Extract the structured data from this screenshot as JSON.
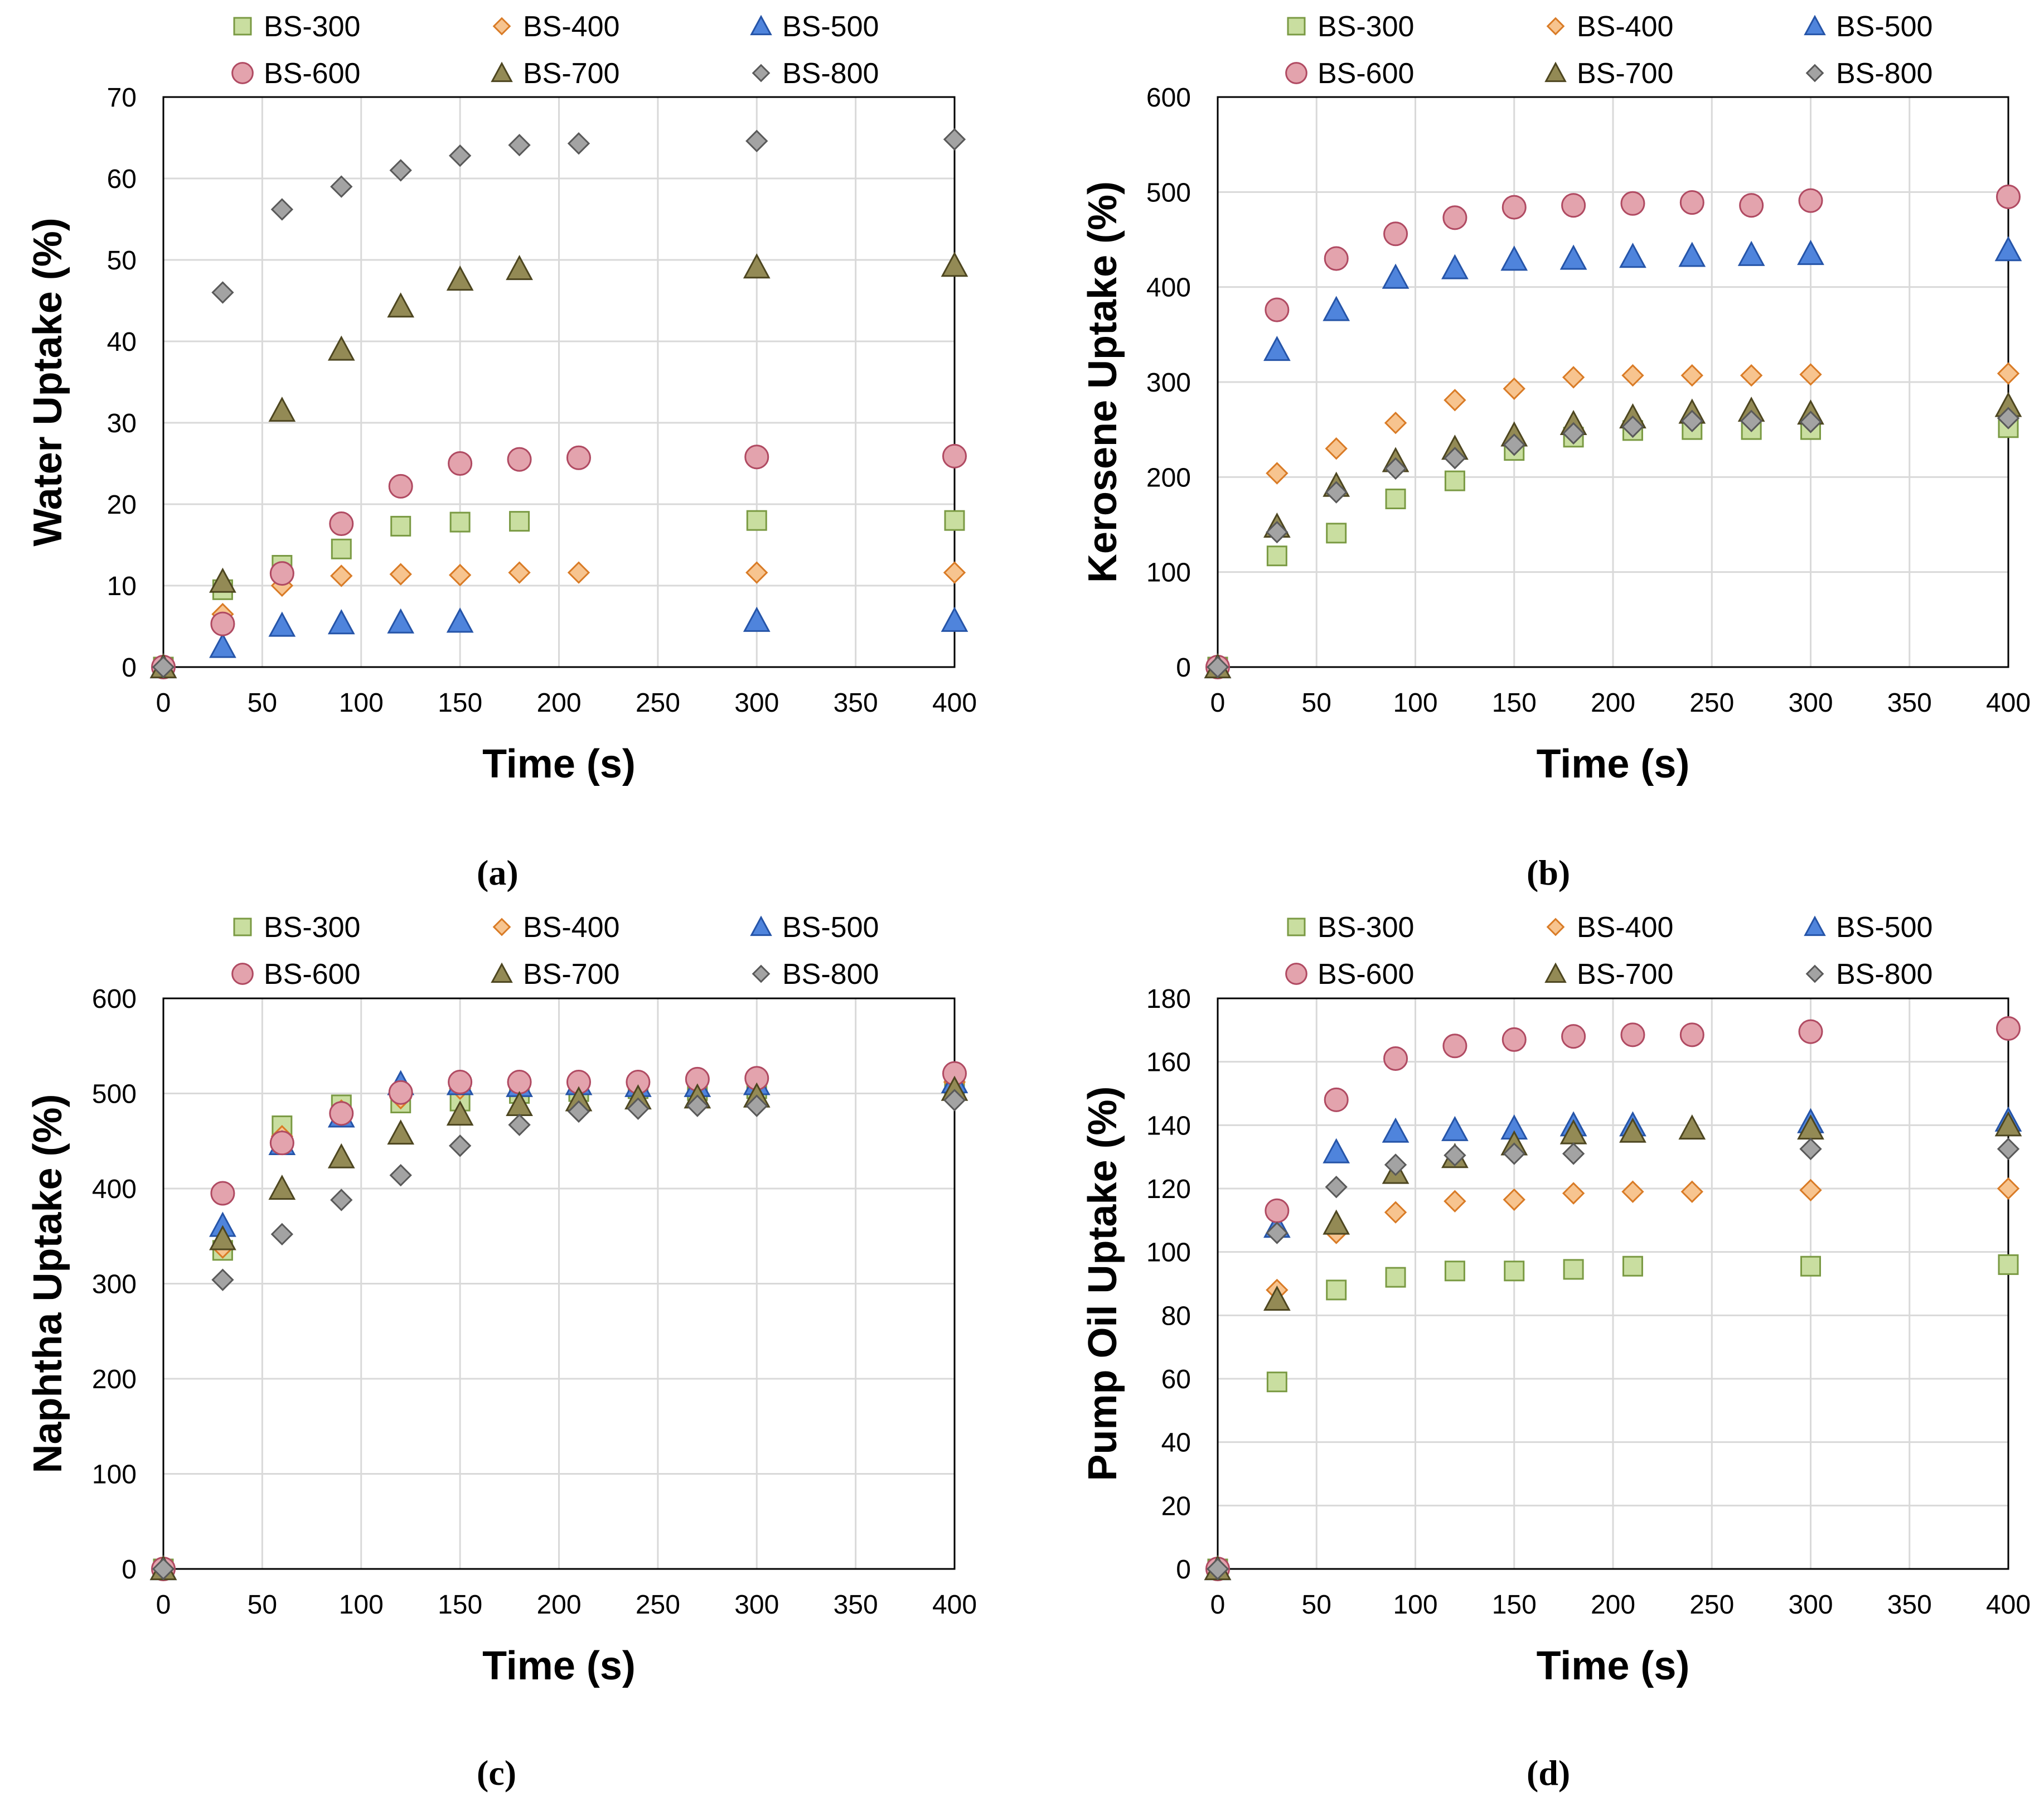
{
  "figure": {
    "panel_labels": [
      "(a)",
      "(b)",
      "(c)",
      "(d)"
    ],
    "styles": {
      "BS-300": {
        "shape": "square",
        "fill": "#c9deA0",
        "stroke": "#7a9a43"
      },
      "BS-400": {
        "shape": "diamond",
        "fill": "#f7c48f",
        "stroke": "#d97b26"
      },
      "BS-500": {
        "shape": "triangle",
        "fill": "#4f84dc",
        "stroke": "#2554a8"
      },
      "BS-600": {
        "shape": "circle",
        "fill": "#e3a3ad",
        "stroke": "#b04a62"
      },
      "BS-700": {
        "shape": "triangle",
        "fill": "#938a55",
        "stroke": "#4d4620"
      },
      "BS-800": {
        "shape": "diamond",
        "fill": "#a3a3a3",
        "stroke": "#595959"
      }
    },
    "colors": {
      "grid": "#d9d9d9",
      "axis": "#000000"
    }
  },
  "chart_data": [
    {
      "type": "scatter",
      "panel": "(a)",
      "xlabel": "Time (s)",
      "ylabel": "Water Uptake (%)",
      "xlim": [
        0,
        400
      ],
      "ylim": [
        0,
        70
      ],
      "xticks": [
        0,
        50,
        100,
        150,
        200,
        250,
        300,
        350,
        400
      ],
      "yticks": [
        0,
        10,
        20,
        30,
        40,
        50,
        60,
        70
      ],
      "series": [
        {
          "name": "BS-300",
          "x": [
            0,
            30,
            60,
            90,
            120,
            150,
            180,
            300,
            400
          ],
          "y": [
            0,
            9.5,
            12.5,
            14.5,
            17.3,
            17.8,
            17.9,
            18.0,
            18.0
          ]
        },
        {
          "name": "BS-400",
          "x": [
            0,
            30,
            60,
            90,
            120,
            150,
            180,
            210,
            300,
            400
          ],
          "y": [
            0,
            6.5,
            10.0,
            11.2,
            11.4,
            11.3,
            11.6,
            11.6,
            11.6,
            11.6
          ]
        },
        {
          "name": "BS-500",
          "x": [
            0,
            30,
            60,
            90,
            120,
            150,
            300,
            400
          ],
          "y": [
            0,
            2.5,
            5.1,
            5.4,
            5.5,
            5.6,
            5.7,
            5.7
          ]
        },
        {
          "name": "BS-600",
          "x": [
            0,
            30,
            60,
            90,
            120,
            150,
            180,
            210,
            300,
            400
          ],
          "y": [
            0,
            5.3,
            11.5,
            17.6,
            22.2,
            25.0,
            25.5,
            25.7,
            25.8,
            25.9
          ]
        },
        {
          "name": "BS-700",
          "x": [
            0,
            30,
            60,
            90,
            120,
            150,
            180,
            300,
            400
          ],
          "y": [
            0,
            10.5,
            31.5,
            39.0,
            44.3,
            47.6,
            48.9,
            49.1,
            49.3
          ]
        },
        {
          "name": "BS-800",
          "x": [
            0,
            30,
            60,
            90,
            120,
            150,
            180,
            210,
            300,
            400
          ],
          "y": [
            0,
            46.0,
            56.2,
            59.0,
            61.0,
            62.8,
            64.1,
            64.3,
            64.6,
            64.8
          ]
        }
      ]
    },
    {
      "type": "scatter",
      "panel": "(b)",
      "xlabel": "Time (s)",
      "ylabel": "Kerosene Uptake (%)",
      "xlim": [
        0,
        400
      ],
      "ylim": [
        0,
        600
      ],
      "xticks": [
        0,
        50,
        100,
        150,
        200,
        250,
        300,
        350,
        400
      ],
      "yticks": [
        0,
        100,
        200,
        300,
        400,
        500,
        600
      ],
      "series": [
        {
          "name": "BS-300",
          "x": [
            0,
            30,
            60,
            90,
            120,
            150,
            180,
            210,
            240,
            270,
            300,
            400
          ],
          "y": [
            0,
            117,
            141,
            177,
            196,
            228,
            242,
            249,
            250,
            250,
            250,
            252
          ]
        },
        {
          "name": "BS-400",
          "x": [
            0,
            30,
            60,
            90,
            120,
            150,
            180,
            210,
            240,
            270,
            300,
            400
          ],
          "y": [
            0,
            204,
            230,
            257,
            281,
            293,
            305,
            307,
            307,
            307,
            308,
            309
          ]
        },
        {
          "name": "BS-500",
          "x": [
            0,
            30,
            60,
            90,
            120,
            150,
            180,
            210,
            240,
            270,
            300,
            400
          ],
          "y": [
            0,
            334,
            376,
            410,
            420,
            429,
            430,
            432,
            433,
            434,
            435,
            439
          ]
        },
        {
          "name": "BS-600",
          "x": [
            0,
            30,
            60,
            90,
            120,
            150,
            180,
            210,
            240,
            270,
            300,
            400
          ],
          "y": [
            0,
            376,
            430,
            456,
            473,
            484,
            486,
            488,
            489,
            486,
            491,
            495
          ]
        },
        {
          "name": "BS-700",
          "x": [
            0,
            30,
            60,
            90,
            120,
            150,
            180,
            210,
            240,
            270,
            300,
            400
          ],
          "y": [
            0,
            148,
            191,
            217,
            230,
            244,
            256,
            263,
            268,
            270,
            267,
            275
          ]
        },
        {
          "name": "BS-800",
          "x": [
            0,
            30,
            60,
            90,
            120,
            150,
            180,
            210,
            240,
            270,
            300,
            400
          ],
          "y": [
            0,
            142,
            184,
            209,
            220,
            234,
            246,
            253,
            259,
            259,
            258,
            262
          ]
        }
      ]
    },
    {
      "type": "scatter",
      "panel": "(c)",
      "xlabel": "Time (s)",
      "ylabel": "Naphtha Uptake (%)",
      "xlim": [
        0,
        400
      ],
      "ylim": [
        0,
        600
      ],
      "xticks": [
        0,
        50,
        100,
        150,
        200,
        250,
        300,
        350,
        400
      ],
      "yticks": [
        0,
        100,
        200,
        300,
        400,
        500,
        600
      ],
      "series": [
        {
          "name": "BS-300",
          "x": [
            0,
            30,
            60,
            90,
            120,
            150,
            180,
            210,
            240,
            270,
            300,
            400
          ],
          "y": [
            0,
            335,
            466,
            488,
            490,
            492,
            500,
            502,
            505,
            503,
            505,
            508
          ]
        },
        {
          "name": "BS-400",
          "x": [
            0,
            30,
            60,
            90,
            120,
            150,
            180,
            210,
            240,
            270,
            300,
            400
          ],
          "y": [
            0,
            338,
            455,
            482,
            495,
            505,
            507,
            508,
            508,
            510,
            510,
            512
          ]
        },
        {
          "name": "BS-500",
          "x": [
            0,
            30,
            60,
            90,
            120,
            150,
            180,
            210,
            240,
            270,
            300,
            400
          ],
          "y": [
            0,
            361,
            447,
            476,
            510,
            510,
            508,
            510,
            508,
            508,
            510,
            512
          ]
        },
        {
          "name": "BS-600",
          "x": [
            0,
            30,
            60,
            90,
            120,
            150,
            180,
            210,
            240,
            270,
            300,
            400
          ],
          "y": [
            0,
            395,
            448,
            479,
            501,
            512,
            512,
            512,
            512,
            515,
            516,
            521
          ]
        },
        {
          "name": "BS-700",
          "x": [
            0,
            30,
            60,
            90,
            120,
            150,
            180,
            210,
            240,
            270,
            300,
            400
          ],
          "y": [
            0,
            347,
            400,
            433,
            458,
            478,
            488,
            493,
            495,
            496,
            497,
            504
          ]
        },
        {
          "name": "BS-800",
          "x": [
            0,
            30,
            60,
            90,
            120,
            150,
            180,
            210,
            240,
            270,
            300,
            400
          ],
          "y": [
            0,
            304,
            352,
            388,
            414,
            445,
            467,
            481,
            484,
            487,
            487,
            493
          ]
        }
      ]
    },
    {
      "type": "scatter",
      "panel": "(d)",
      "xlabel": "Time (s)",
      "ylabel": "Pump Oil Uptake (%)",
      "xlim": [
        0,
        400
      ],
      "ylim": [
        0,
        180
      ],
      "xticks": [
        0,
        50,
        100,
        150,
        200,
        250,
        300,
        350,
        400
      ],
      "yticks": [
        0,
        20,
        40,
        60,
        80,
        100,
        120,
        140,
        160,
        180
      ],
      "series": [
        {
          "name": "BS-300",
          "x": [
            0,
            30,
            60,
            90,
            120,
            150,
            180,
            210,
            300,
            400
          ],
          "y": [
            0,
            59,
            88,
            92,
            94,
            94,
            94.5,
            95.5,
            95.5,
            96
          ]
        },
        {
          "name": "BS-400",
          "x": [
            0,
            30,
            60,
            90,
            120,
            150,
            180,
            210,
            240,
            300,
            400
          ],
          "y": [
            0,
            88,
            106,
            112.5,
            116,
            116.5,
            118.5,
            119,
            119,
            119.5,
            120
          ]
        },
        {
          "name": "BS-500",
          "x": [
            0,
            30,
            60,
            90,
            120,
            150,
            180,
            210,
            300,
            400
          ],
          "y": [
            0,
            108,
            131.5,
            138,
            138.5,
            139,
            140,
            140,
            141,
            141.5
          ]
        },
        {
          "name": "BS-600",
          "x": [
            0,
            30,
            60,
            90,
            120,
            150,
            180,
            210,
            240,
            300,
            400
          ],
          "y": [
            0,
            113,
            148,
            161,
            165,
            167,
            168,
            168.5,
            168.5,
            169.5,
            170.5
          ]
        },
        {
          "name": "BS-700",
          "x": [
            0,
            30,
            60,
            90,
            120,
            150,
            180,
            210,
            240,
            300,
            400
          ],
          "y": [
            0,
            85,
            109,
            125,
            130,
            134,
            137.5,
            138,
            139,
            139,
            140
          ]
        },
        {
          "name": "BS-800",
          "x": [
            0,
            30,
            60,
            90,
            120,
            150,
            180,
            300,
            400
          ],
          "y": [
            0,
            106,
            120.5,
            127.5,
            130.5,
            131,
            131,
            132.5,
            132.5
          ]
        }
      ]
    }
  ]
}
